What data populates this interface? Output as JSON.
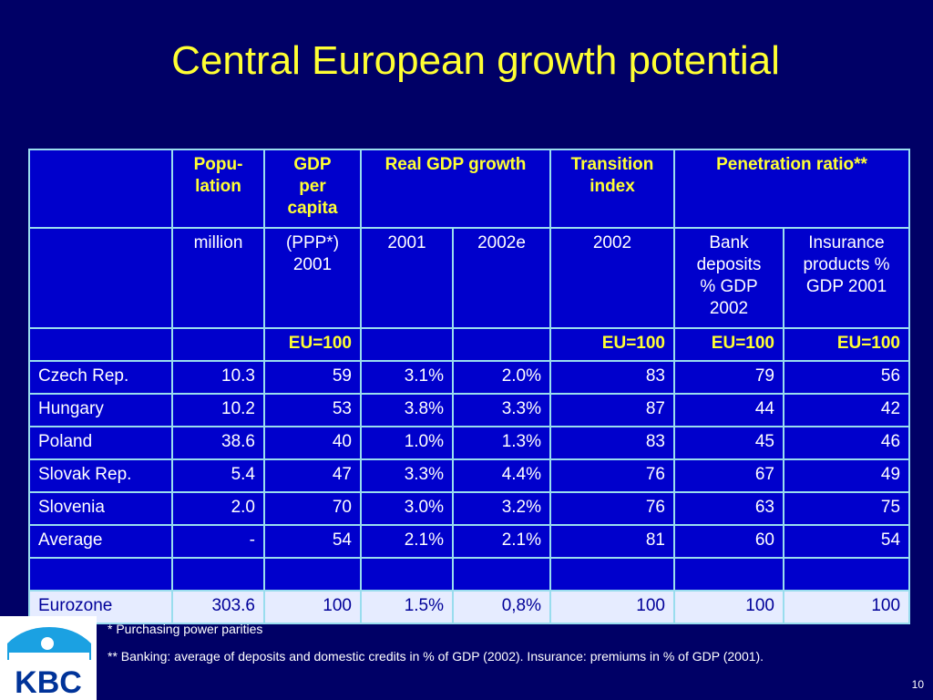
{
  "title": "Central European growth potential",
  "table": {
    "header1": {
      "population": "Popu-\nlation",
      "gdp_per_capita": "GDP\nper\ncapita",
      "real_gdp_growth": "Real GDP growth",
      "transition_index": "Transition\nindex",
      "penetration_ratio": "Penetration ratio**"
    },
    "header2": {
      "population_unit": "million",
      "gdp_unit": "(PPP*)\n2001",
      "growth_2001": "2001",
      "growth_2002e": "2002e",
      "transition_year": "2002",
      "bank_deposits": "Bank\ndeposits\n% GDP\n2002",
      "insurance": "Insurance\nproducts %\nGDP 2001"
    },
    "header3": {
      "gdp": "EU=100",
      "transition": "EU=100",
      "bank": "EU=100",
      "insurance": "EU=100"
    },
    "rows": [
      [
        "Czech Rep.",
        "10.3",
        "59",
        "3.1%",
        "2.0%",
        "83",
        "79",
        "56"
      ],
      [
        "Hungary",
        "10.2",
        "53",
        "3.8%",
        "3.3%",
        "87",
        "44",
        "42"
      ],
      [
        "Poland",
        "38.6",
        "40",
        "1.0%",
        "1.3%",
        "83",
        "45",
        "46"
      ],
      [
        "Slovak Rep.",
        "5.4",
        "47",
        "3.3%",
        "4.4%",
        "76",
        "67",
        "49"
      ],
      [
        "Slovenia",
        "2.0",
        "70",
        "3.0%",
        "3.2%",
        "76",
        "63",
        "75"
      ],
      [
        "Average",
        "-",
        "54",
        "2.1%",
        "2.1%",
        "81",
        "60",
        "54"
      ]
    ],
    "eurozone": [
      "Eurozone",
      "303.6",
      "100",
      "1.5%",
      "0,8%",
      "100",
      "100",
      "100"
    ]
  },
  "footnotes": {
    "ppp": "* Purchasing power parities",
    "banking": "** Banking: average of deposits and domestic credits in % of GDP (2002).  Insurance: premiums in % of GDP (2001)."
  },
  "logo_text": "KBC",
  "page_number": "10",
  "colors": {
    "background": "#000066",
    "title": "#ffff33",
    "cell": "#0000cc",
    "border": "#99ddee",
    "eurozone_row": "#e6ecff",
    "logo": "#1ba1e2"
  }
}
